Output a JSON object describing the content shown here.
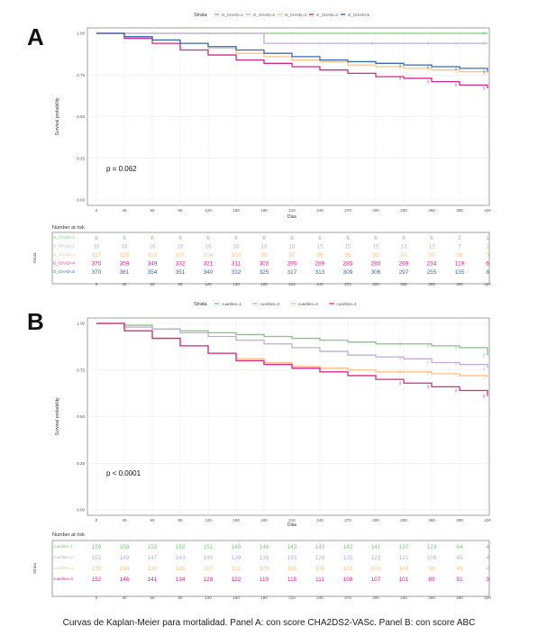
{
  "caption": "Curvas de Kaplan-Meier para mortalidad. Panel A: con score CHA2DS2-VASc. Panel B: con score ABC",
  "colors": {
    "c1": "#7fc97f",
    "c2": "#beaed4",
    "c3": "#fdc086",
    "c4": "#d6278a",
    "c5": "#386cb0"
  },
  "chart_data": [
    {
      "type": "line",
      "panel_letter": "A",
      "legend_title": "Strata",
      "legend_position": "top",
      "xlabel": "Dias",
      "ylabel": "Survival probability",
      "xlim": [
        0,
        420
      ],
      "ylim": [
        0,
        1
      ],
      "x_ticks": [
        0,
        30,
        60,
        90,
        120,
        150,
        180,
        210,
        240,
        270,
        300,
        330,
        360,
        390,
        420
      ],
      "y_ticks": [
        0,
        0.25,
        0.5,
        0.75,
        1
      ],
      "y_tick_labels": [
        "0.00",
        "0.25",
        "0.50",
        "0.75",
        "1.00"
      ],
      "pvalue_label": "p = 0.062",
      "risk_title": "Number at risk",
      "risk_strata_label": "Strata",
      "series": [
        {
          "name": "G_CHAD=1",
          "color": "#7fc97f",
          "x": [
            0,
            420
          ],
          "y": [
            1.0,
            1.0
          ],
          "risk": [
            "6",
            "6",
            "6",
            "6",
            "6",
            "6",
            "6",
            "6",
            "6",
            "6",
            "6",
            "6",
            "6",
            "2",
            "1"
          ]
        },
        {
          "name": "G_CHAD=2",
          "color": "#beaed4",
          "x": [
            0,
            30,
            60,
            90,
            120,
            150,
            180,
            240,
            300,
            360,
            390,
            420
          ],
          "y": [
            1.0,
            1.0,
            1.0,
            1.0,
            1.0,
            1.0,
            0.94,
            0.94,
            0.94,
            0.94,
            0.94,
            0.94
          ],
          "risk": [
            "16",
            "16",
            "16",
            "16",
            "16",
            "16",
            "16",
            "16",
            "15",
            "15",
            "15",
            "13",
            "12",
            "7",
            "1"
          ]
        },
        {
          "name": "G_CHAD=3",
          "color": "#fdc086",
          "x": [
            0,
            30,
            60,
            90,
            120,
            150,
            180,
            210,
            240,
            270,
            300,
            330,
            360,
            390,
            420
          ],
          "y": [
            1.0,
            0.98,
            0.96,
            0.94,
            0.91,
            0.88,
            0.86,
            0.84,
            0.83,
            0.81,
            0.8,
            0.79,
            0.78,
            0.77,
            0.76
          ],
          "risk": [
            "117",
            "115",
            "110",
            "107",
            "104",
            "103",
            "99",
            "97",
            "96",
            "96",
            "95",
            "93",
            "90",
            "38",
            "0"
          ]
        },
        {
          "name": "G_CHAD=4",
          "color": "#d6278a",
          "x": [
            0,
            30,
            60,
            90,
            120,
            150,
            180,
            210,
            240,
            270,
            300,
            330,
            360,
            390,
            420
          ],
          "y": [
            1.0,
            0.97,
            0.94,
            0.9,
            0.87,
            0.84,
            0.82,
            0.8,
            0.78,
            0.76,
            0.74,
            0.73,
            0.71,
            0.69,
            0.67
          ],
          "risk": [
            "370",
            "359",
            "349",
            "332",
            "321",
            "311",
            "303",
            "295",
            "289",
            "285",
            "280",
            "269",
            "234",
            "119",
            "6"
          ]
        },
        {
          "name": "G_CHAD=5",
          "color": "#386cb0",
          "x": [
            0,
            30,
            60,
            90,
            120,
            150,
            180,
            210,
            240,
            270,
            300,
            330,
            360,
            390,
            420
          ],
          "y": [
            1.0,
            0.98,
            0.96,
            0.94,
            0.92,
            0.9,
            0.88,
            0.86,
            0.84,
            0.83,
            0.82,
            0.81,
            0.8,
            0.79,
            0.77
          ],
          "risk": [
            "370",
            "361",
            "354",
            "351",
            "340",
            "332",
            "325",
            "317",
            "313",
            "309",
            "306",
            "297",
            "255",
            "135",
            "8"
          ]
        }
      ]
    },
    {
      "type": "line",
      "panel_letter": "B",
      "legend_title": "Strata",
      "legend_position": "top",
      "xlabel": "Dias",
      "ylabel": "Survival probability",
      "xlim": [
        0,
        420
      ],
      "ylim": [
        0,
        1
      ],
      "x_ticks": [
        0,
        30,
        60,
        90,
        120,
        150,
        180,
        210,
        240,
        270,
        300,
        330,
        360,
        390,
        420
      ],
      "y_ticks": [
        0,
        0.25,
        0.5,
        0.75,
        1
      ],
      "y_tick_labels": [
        "0.00",
        "0.25",
        "0.50",
        "0.75",
        "1.00"
      ],
      "pvalue_label": "p < 0.0001",
      "risk_title": "Number at risk",
      "risk_strata_label": "Strata",
      "series": [
        {
          "name": "cuartiles=1",
          "color": "#7fc97f",
          "x": [
            0,
            30,
            60,
            90,
            120,
            150,
            180,
            210,
            240,
            270,
            300,
            330,
            360,
            390,
            420
          ],
          "y": [
            1.0,
            0.99,
            0.97,
            0.96,
            0.95,
            0.94,
            0.93,
            0.92,
            0.91,
            0.9,
            0.89,
            0.89,
            0.88,
            0.87,
            0.83
          ],
          "risk": [
            "159",
            "158",
            "152",
            "152",
            "151",
            "149",
            "146",
            "143",
            "143",
            "142",
            "141",
            "137",
            "123",
            "64",
            "4"
          ]
        },
        {
          "name": "cuartiles=2",
          "color": "#beaed4",
          "x": [
            0,
            30,
            60,
            90,
            120,
            150,
            180,
            210,
            240,
            270,
            300,
            330,
            360,
            390,
            420
          ],
          "y": [
            1.0,
            0.98,
            0.97,
            0.95,
            0.93,
            0.91,
            0.89,
            0.87,
            0.85,
            0.83,
            0.82,
            0.81,
            0.79,
            0.78,
            0.76
          ],
          "risk": [
            "152",
            "149",
            "147",
            "143",
            "140",
            "139",
            "136",
            "133",
            "128",
            "125",
            "123",
            "121",
            "109",
            "45",
            "4"
          ]
        },
        {
          "name": "cuartiles=3",
          "color": "#fdc086",
          "x": [
            0,
            30,
            60,
            90,
            120,
            150,
            180,
            210,
            240,
            270,
            300,
            330,
            360,
            390,
            420
          ],
          "y": [
            1.0,
            0.96,
            0.92,
            0.88,
            0.84,
            0.81,
            0.79,
            0.77,
            0.76,
            0.75,
            0.74,
            0.74,
            0.73,
            0.72,
            0.71
          ],
          "risk": [
            "139",
            "134",
            "130",
            "126",
            "117",
            "112",
            "109",
            "106",
            "105",
            "103",
            "103",
            "100",
            "98",
            "45",
            "4"
          ]
        },
        {
          "name": "cuartiles=4",
          "color": "#d6278a",
          "x": [
            0,
            30,
            60,
            90,
            120,
            150,
            180,
            210,
            240,
            270,
            300,
            330,
            360,
            390,
            420
          ],
          "y": [
            1.0,
            0.96,
            0.92,
            0.88,
            0.84,
            0.8,
            0.78,
            0.76,
            0.74,
            0.72,
            0.7,
            0.68,
            0.66,
            0.64,
            0.61
          ],
          "risk": [
            "152",
            "146",
            "141",
            "134",
            "128",
            "122",
            "119",
            "115",
            "111",
            "108",
            "107",
            "101",
            "89",
            "51",
            "3"
          ]
        }
      ]
    }
  ]
}
